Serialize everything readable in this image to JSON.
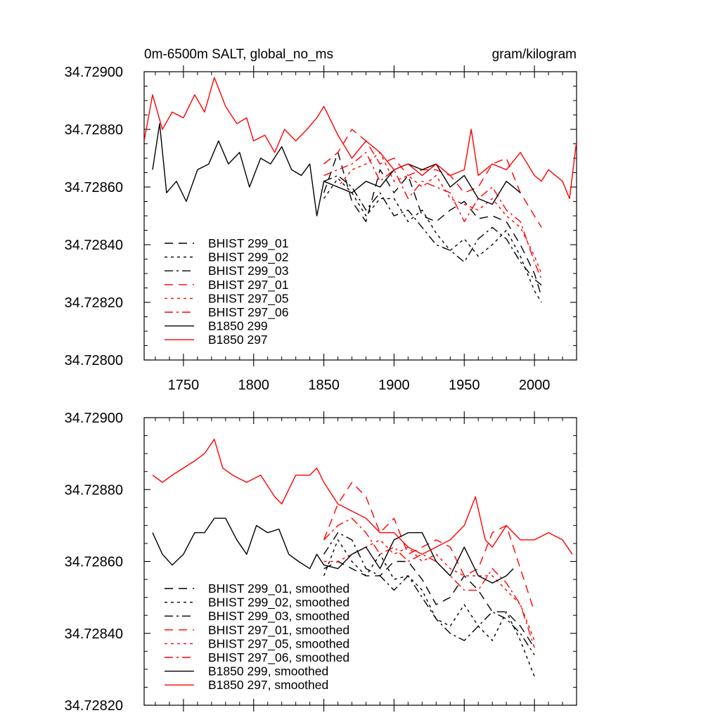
{
  "chart_data": [
    {
      "type": "line",
      "title_left": "0m-6500m SALT, global_no_ms",
      "title_right": "gram/kilogram",
      "xlabel": "",
      "ylabel": "",
      "xlim": [
        1722,
        2030
      ],
      "ylim": [
        34.728,
        34.729
      ],
      "xticks": [
        1750,
        1800,
        1850,
        1900,
        1950,
        2000
      ],
      "xtick_labels": [
        "1750",
        "1800",
        "1850",
        "1900",
        "1950",
        "2000"
      ],
      "yticks": [
        34.728,
        34.7282,
        34.7284,
        34.7286,
        34.7288,
        34.729
      ],
      "ytick_labels": [
        "34.72800",
        "34.72820",
        "34.72840",
        "34.72860",
        "34.72880",
        "34.72900"
      ],
      "legend_position": "lower-left",
      "series": [
        {
          "name": "BHIST 299_01",
          "color": "#000000",
          "dash": "long-dash",
          "x": [
            1850,
            1860,
            1870,
            1880,
            1890,
            1900,
            1910,
            1920,
            1930,
            1940,
            1950,
            1960,
            1970,
            1980,
            1990,
            2000,
            2005
          ],
          "y": [
            34.72858,
            34.72872,
            34.72855,
            34.72848,
            34.72866,
            34.72858,
            34.72864,
            34.7285,
            34.72848,
            34.72852,
            34.72855,
            34.72849,
            34.7285,
            34.72848,
            34.7284,
            34.7283,
            34.72822
          ]
        },
        {
          "name": "BHIST 299_02",
          "color": "#000000",
          "dash": "short-dash",
          "x": [
            1850,
            1860,
            1870,
            1880,
            1890,
            1900,
            1910,
            1920,
            1930,
            1940,
            1950,
            1960,
            1970,
            1980,
            1990,
            2000,
            2005
          ],
          "y": [
            34.72856,
            34.72863,
            34.72858,
            34.7285,
            34.72856,
            34.72856,
            34.72848,
            34.72852,
            34.72844,
            34.72838,
            34.72842,
            34.72836,
            34.7284,
            34.72845,
            34.72836,
            34.72824,
            34.7282
          ]
        },
        {
          "name": "BHIST 299_03",
          "color": "#000000",
          "dash": "dash-dot",
          "x": [
            1850,
            1860,
            1870,
            1880,
            1890,
            1900,
            1910,
            1920,
            1930,
            1940,
            1950,
            1960,
            1970,
            1980,
            1990,
            2000,
            2005
          ],
          "y": [
            34.72862,
            34.72864,
            34.7286,
            34.72852,
            34.72858,
            34.7285,
            34.72852,
            34.72846,
            34.7284,
            34.72838,
            34.72834,
            34.72842,
            34.72846,
            34.72842,
            34.72834,
            34.72828,
            34.72826
          ]
        },
        {
          "name": "BHIST 297_01",
          "color": "#ff0000",
          "dash": "long-dash",
          "x": [
            1850,
            1860,
            1870,
            1880,
            1890,
            1900,
            1910,
            1920,
            1930,
            1940,
            1950,
            1960,
            1970,
            1980,
            1990,
            2000,
            2005
          ],
          "y": [
            34.72868,
            34.72872,
            34.7288,
            34.72876,
            34.72868,
            34.7287,
            34.72864,
            34.72866,
            34.72866,
            34.72864,
            34.72858,
            34.7286,
            34.72868,
            34.7287,
            34.72858,
            34.7285,
            34.72846
          ]
        },
        {
          "name": "BHIST 297_05",
          "color": "#ff0000",
          "dash": "short-dash",
          "x": [
            1850,
            1860,
            1870,
            1880,
            1890,
            1900,
            1910,
            1920,
            1930,
            1940,
            1950,
            1960,
            1970,
            1980,
            1990,
            2000,
            2005
          ],
          "y": [
            34.72862,
            34.7286,
            34.72866,
            34.72868,
            34.72872,
            34.72862,
            34.72864,
            34.7286,
            34.72864,
            34.72856,
            34.72854,
            34.72852,
            34.72856,
            34.7285,
            34.72846,
            34.72836,
            34.7283
          ]
        },
        {
          "name": "BHIST 297_06",
          "color": "#ff0000",
          "dash": "dash-dot",
          "x": [
            1850,
            1860,
            1870,
            1880,
            1890,
            1900,
            1910,
            1920,
            1930,
            1940,
            1950,
            1960,
            1970,
            1980,
            1990,
            2000,
            2005
          ],
          "y": [
            34.72864,
            34.72866,
            34.72868,
            34.72872,
            34.72862,
            34.72866,
            34.72856,
            34.72862,
            34.7286,
            34.72858,
            34.72848,
            34.72856,
            34.7286,
            34.72852,
            34.72848,
            34.72834,
            34.72828
          ]
        },
        {
          "name": "B1850 299",
          "color": "#000000",
          "dash": "solid",
          "x": [
            1728,
            1733,
            1738,
            1745,
            1752,
            1760,
            1768,
            1775,
            1782,
            1790,
            1797,
            1805,
            1812,
            1820,
            1827,
            1834,
            1840,
            1845,
            1850,
            1860,
            1870,
            1880,
            1890,
            1900,
            1910,
            1920,
            1930,
            1940,
            1950,
            1960,
            1970,
            1980,
            1990
          ],
          "y": [
            34.72866,
            34.72882,
            34.72858,
            34.72862,
            34.72855,
            34.72866,
            34.72868,
            34.72876,
            34.72868,
            34.72872,
            34.7286,
            34.7287,
            34.72868,
            34.72874,
            34.72866,
            34.72864,
            34.72868,
            34.7285,
            34.72862,
            34.7286,
            34.72858,
            34.72862,
            34.7286,
            34.72866,
            34.72868,
            34.72866,
            34.72868,
            34.7286,
            34.72864,
            34.72856,
            34.72854,
            34.72862,
            34.72858
          ]
        },
        {
          "name": "B1850 297",
          "color": "#ff0000",
          "dash": "solid",
          "x": [
            1722,
            1728,
            1735,
            1742,
            1750,
            1758,
            1765,
            1772,
            1780,
            1788,
            1795,
            1800,
            1808,
            1815,
            1822,
            1830,
            1838,
            1845,
            1850,
            1860,
            1870,
            1880,
            1890,
            1900,
            1910,
            1920,
            1930,
            1940,
            1950,
            1955,
            1960,
            1970,
            1980,
            1990,
            2000,
            2005,
            2010,
            2015,
            2020,
            2025,
            2030
          ],
          "y": [
            34.72876,
            34.72892,
            34.7288,
            34.72886,
            34.72884,
            34.72892,
            34.72886,
            34.72898,
            34.72888,
            34.72882,
            34.72884,
            34.72876,
            34.72878,
            34.72872,
            34.7288,
            34.72876,
            34.7288,
            34.72884,
            34.72888,
            34.72878,
            34.7287,
            34.72876,
            34.72872,
            34.72866,
            34.72868,
            34.72864,
            34.72868,
            34.72864,
            34.72866,
            34.7288,
            34.72864,
            34.72868,
            34.72866,
            34.72872,
            34.72864,
            34.72862,
            34.72866,
            34.72864,
            34.72862,
            34.72856,
            34.72876
          ]
        }
      ]
    },
    {
      "type": "line",
      "xlabel": "",
      "ylabel": "",
      "xlim": [
        1722,
        2030
      ],
      "ylim": [
        34.7282,
        34.729
      ],
      "xticks": [
        1750,
        1800,
        1850,
        1900,
        1950,
        2000
      ],
      "yticks": [
        34.7282,
        34.7284,
        34.7286,
        34.7288,
        34.729
      ],
      "ytick_labels": [
        "34.72820",
        "34.72840",
        "34.72860",
        "34.72880",
        "34.72900"
      ],
      "legend_position": "lower-left",
      "series": [
        {
          "name": "BHIST 299_01, smoothed",
          "color": "#000000",
          "dash": "long-dash",
          "x": [
            1850,
            1860,
            1870,
            1880,
            1890,
            1900,
            1910,
            1920,
            1930,
            1940,
            1950,
            1960,
            1970,
            1980,
            1990,
            2000
          ],
          "y": [
            34.72858,
            34.7286,
            34.72858,
            34.72856,
            34.72856,
            34.7286,
            34.7286,
            34.72855,
            34.72848,
            34.7285,
            34.72856,
            34.72852,
            34.72846,
            34.72846,
            34.72842,
            34.72836
          ]
        },
        {
          "name": "BHIST 299_02, smoothed",
          "color": "#000000",
          "dash": "short-dash",
          "x": [
            1850,
            1860,
            1870,
            1880,
            1890,
            1900,
            1910,
            1920,
            1930,
            1940,
            1950,
            1960,
            1970,
            1980,
            1990,
            2000
          ],
          "y": [
            34.72856,
            34.72866,
            34.7286,
            34.72856,
            34.72862,
            34.72855,
            34.72856,
            34.72852,
            34.72844,
            34.72842,
            34.72848,
            34.72842,
            34.72838,
            34.72846,
            34.72838,
            34.72828
          ]
        },
        {
          "name": "BHIST 299_03, smoothed",
          "color": "#000000",
          "dash": "dash-dot",
          "x": [
            1850,
            1860,
            1870,
            1880,
            1890,
            1900,
            1910,
            1920,
            1930,
            1940,
            1950,
            1960,
            1970,
            1980,
            1990,
            2000
          ],
          "y": [
            34.72862,
            34.72868,
            34.72866,
            34.72858,
            34.72856,
            34.72852,
            34.72856,
            34.7285,
            34.72844,
            34.7284,
            34.72838,
            34.72842,
            34.72846,
            34.72844,
            34.7284,
            34.72834
          ]
        },
        {
          "name": "BHIST 297_01, smoothed",
          "color": "#ff0000",
          "dash": "long-dash",
          "x": [
            1850,
            1860,
            1870,
            1880,
            1890,
            1900,
            1910,
            1920,
            1930,
            1940,
            1950,
            1960,
            1970,
            1980,
            1990,
            2000
          ],
          "y": [
            34.72866,
            34.72876,
            34.72882,
            34.72878,
            34.72868,
            34.72872,
            34.72862,
            34.72864,
            34.72866,
            34.72864,
            34.72856,
            34.72858,
            34.72868,
            34.7287,
            34.72858,
            34.72846
          ]
        },
        {
          "name": "BHIST 297_05, smoothed",
          "color": "#ff0000",
          "dash": "short-dash",
          "x": [
            1850,
            1860,
            1870,
            1880,
            1890,
            1900,
            1910,
            1920,
            1930,
            1940,
            1950,
            1960,
            1970,
            1980,
            1990,
            2000
          ],
          "y": [
            34.7286,
            34.7286,
            34.72862,
            34.72864,
            34.72866,
            34.72862,
            34.72864,
            34.7286,
            34.72862,
            34.72858,
            34.72856,
            34.72856,
            34.72856,
            34.72852,
            34.72848,
            34.72838
          ]
        },
        {
          "name": "BHIST 297_06, smoothed",
          "color": "#ff0000",
          "dash": "dash-dot",
          "x": [
            1850,
            1860,
            1870,
            1880,
            1890,
            1900,
            1910,
            1920,
            1930,
            1940,
            1950,
            1960,
            1970,
            1980,
            1990,
            2000
          ],
          "y": [
            34.72866,
            34.7287,
            34.72872,
            34.72868,
            34.72862,
            34.72864,
            34.7286,
            34.72862,
            34.7286,
            34.72856,
            34.72852,
            34.72852,
            34.72858,
            34.72854,
            34.72848,
            34.72836
          ]
        },
        {
          "name": "B1850 299, smoothed",
          "color": "#000000",
          "dash": "solid",
          "x": [
            1728,
            1735,
            1742,
            1750,
            1758,
            1765,
            1772,
            1780,
            1788,
            1795,
            1802,
            1810,
            1818,
            1825,
            1832,
            1840,
            1845,
            1850,
            1860,
            1870,
            1880,
            1890,
            1900,
            1910,
            1920,
            1930,
            1940,
            1950,
            1960,
            1970,
            1980,
            1985
          ],
          "y": [
            34.72868,
            34.72862,
            34.72859,
            34.72862,
            34.72868,
            34.72868,
            34.72872,
            34.72872,
            34.72866,
            34.72862,
            34.7287,
            34.72868,
            34.72869,
            34.72862,
            34.7286,
            34.72858,
            34.72862,
            34.72859,
            34.72858,
            34.72862,
            34.72864,
            34.72858,
            34.72866,
            34.72868,
            34.72868,
            34.7286,
            34.72856,
            34.72864,
            34.72856,
            34.72854,
            34.72856,
            34.72858
          ]
        },
        {
          "name": "B1850 297, smoothed",
          "color": "#ff0000",
          "dash": "solid",
          "x": [
            1728,
            1735,
            1742,
            1750,
            1758,
            1765,
            1772,
            1778,
            1785,
            1795,
            1805,
            1815,
            1820,
            1830,
            1840,
            1845,
            1850,
            1860,
            1870,
            1880,
            1890,
            1900,
            1910,
            1920,
            1930,
            1940,
            1950,
            1958,
            1965,
            1970,
            1980,
            1990,
            2000,
            2010,
            2020,
            2027
          ],
          "y": [
            34.72884,
            34.72882,
            34.72884,
            34.72886,
            34.72888,
            34.7289,
            34.72894,
            34.72886,
            34.72884,
            34.72882,
            34.72884,
            34.72878,
            34.72876,
            34.72884,
            34.72884,
            34.72886,
            34.72882,
            34.72876,
            34.72874,
            34.72872,
            34.72868,
            34.72868,
            34.72864,
            34.72862,
            34.72864,
            34.72866,
            34.7287,
            34.72878,
            34.72866,
            34.72864,
            34.7287,
            34.72866,
            34.72866,
            34.72868,
            34.72866,
            34.72862
          ]
        }
      ]
    }
  ]
}
